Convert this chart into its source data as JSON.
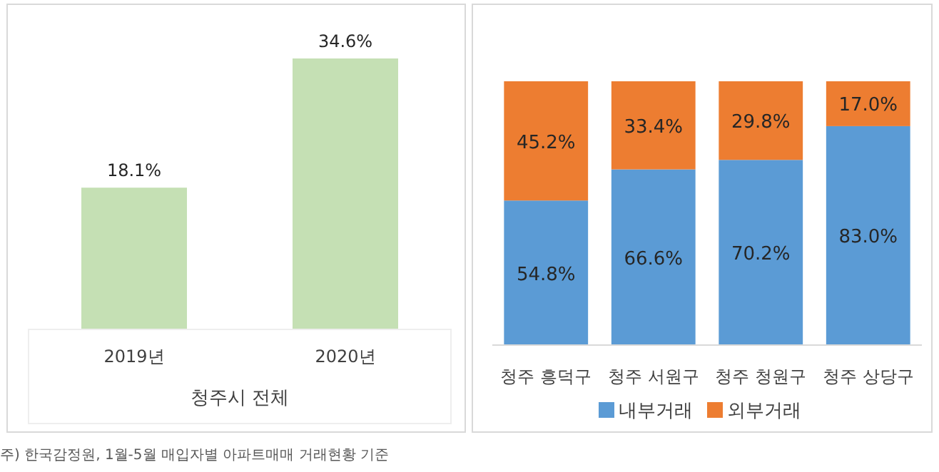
{
  "chart_data": [
    {
      "type": "bar",
      "xlabel": "청주시 전체",
      "categories": [
        "2019년",
        "2020년"
      ],
      "values": [
        18.1,
        34.6
      ],
      "color": "#c5e0b4",
      "value_labels": [
        "18.1%",
        "34.6%"
      ],
      "annotations": [
        "주) 한국감정원,  1월-5월 매입자별 아파트매매 거래현황 기준"
      ]
    },
    {
      "type": "bar",
      "stacked": true,
      "categories": [
        "청주 흥덕구",
        "청주 서원구",
        "청주 청원구",
        "청주 상당구"
      ],
      "legend": "bottom",
      "series": [
        {
          "name": "내부거래",
          "color": "#5b9bd5",
          "values": [
            54.8,
            66.6,
            70.2,
            83.0
          ],
          "value_labels": [
            "54.8%",
            "66.6%",
            "70.2%",
            "83.0%"
          ]
        },
        {
          "name": "외부거래",
          "color": "#ed7d31",
          "values": [
            45.2,
            33.4,
            29.8,
            17.0
          ],
          "value_labels": [
            "45.2%",
            "33.4%",
            "29.8%",
            "17.0%"
          ]
        }
      ]
    }
  ]
}
